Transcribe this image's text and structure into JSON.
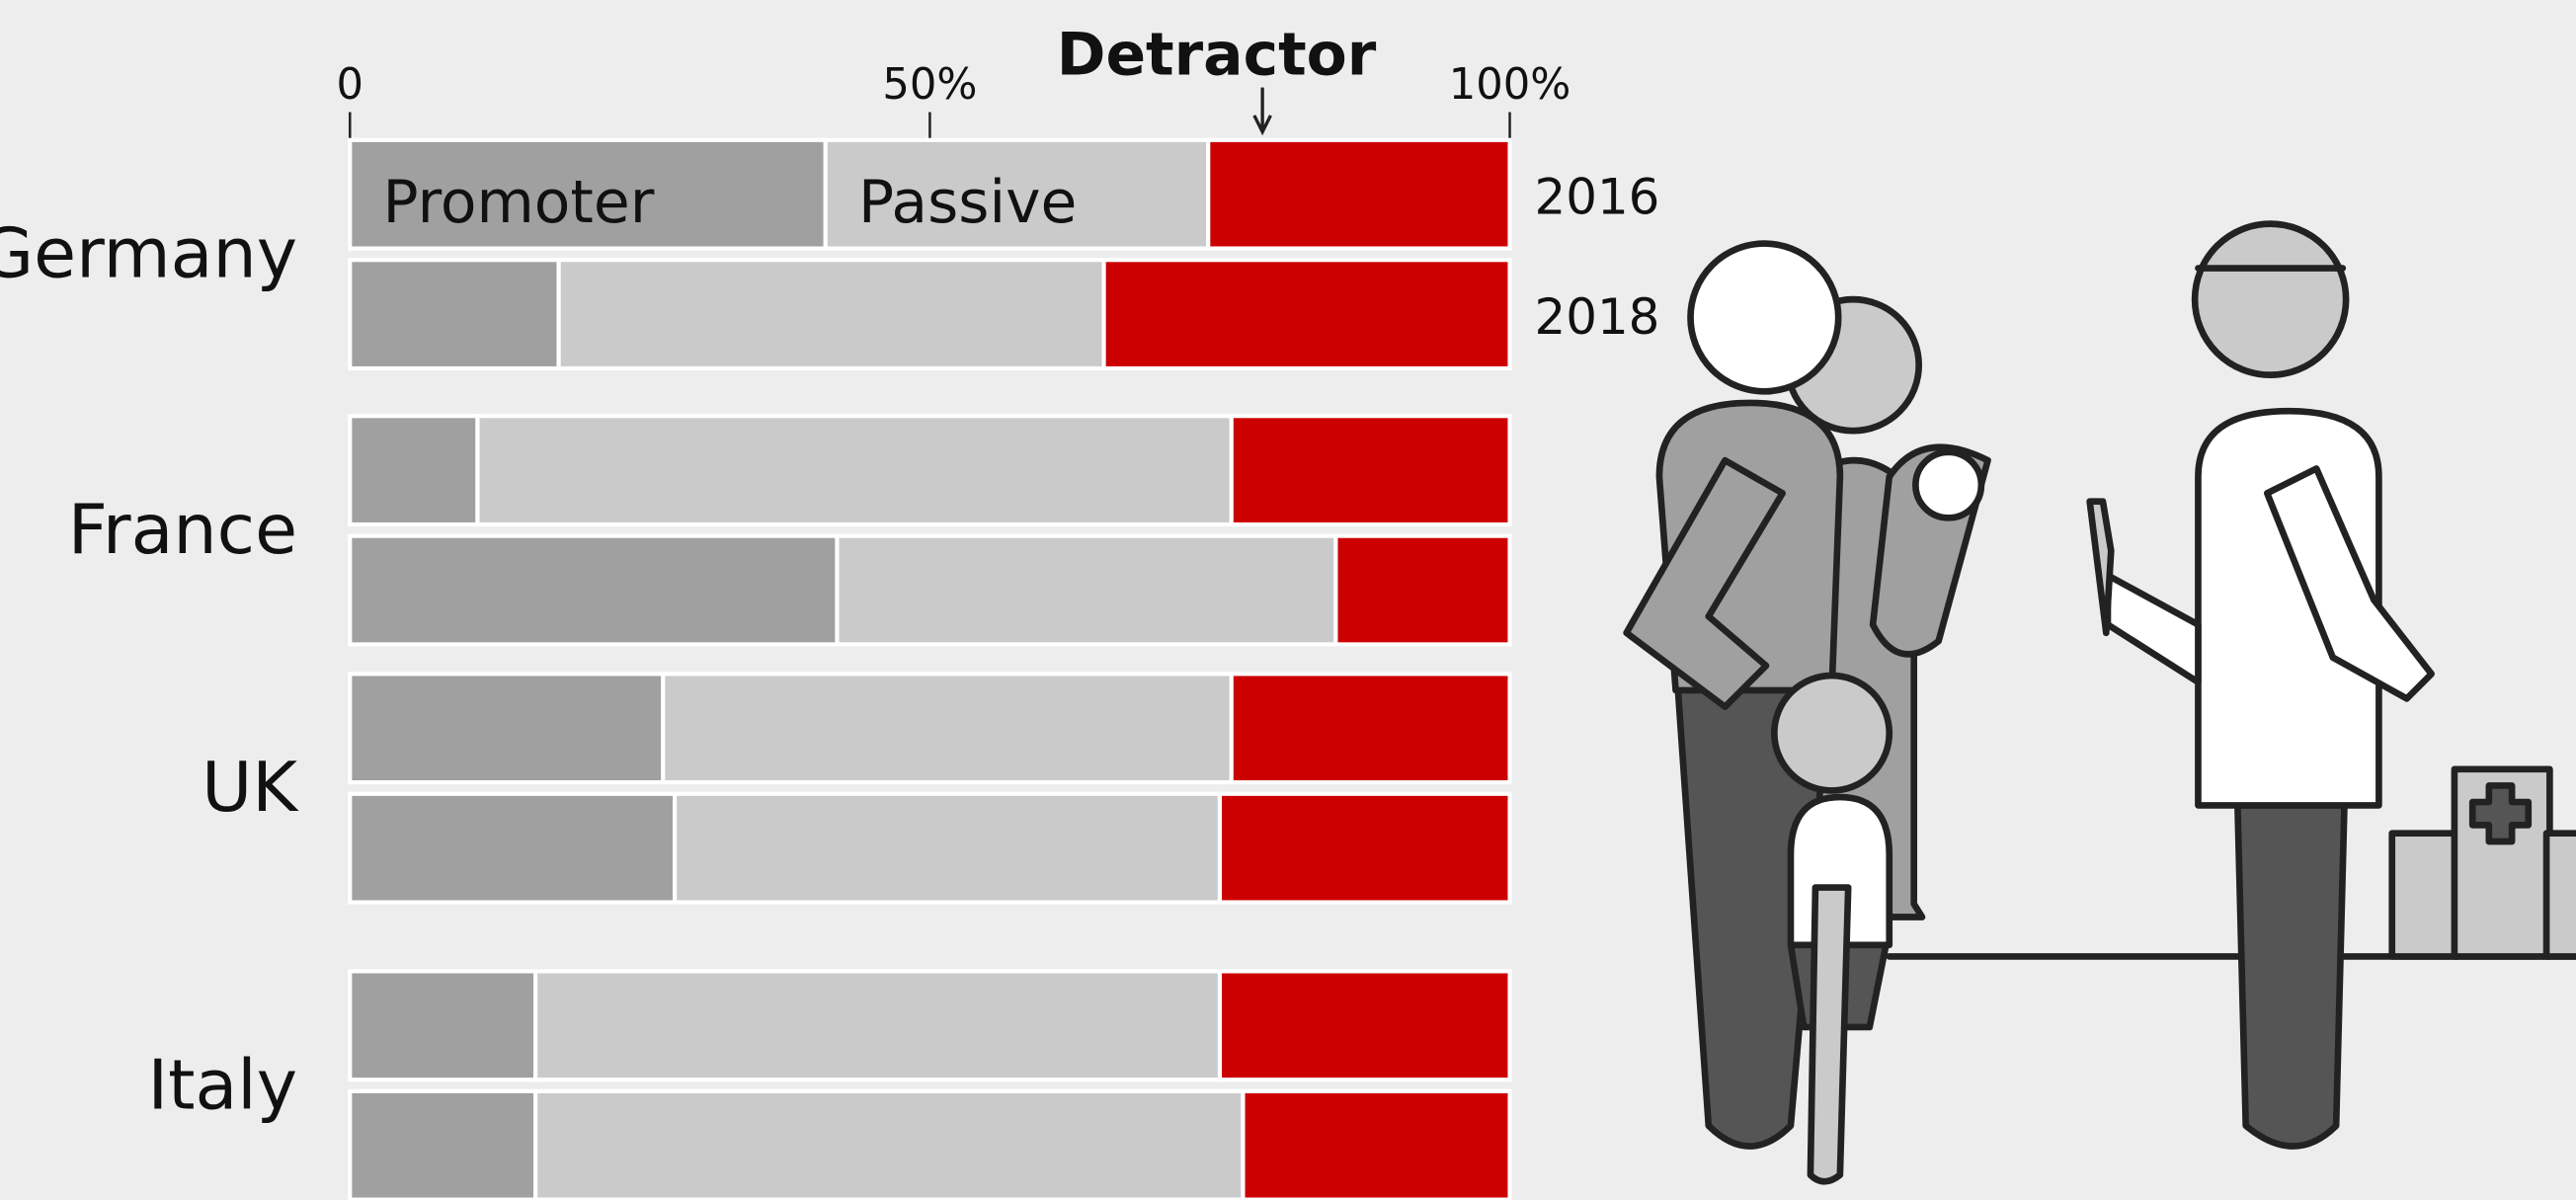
{
  "chart_data": {
    "type": "stacked-bar-100",
    "countries": [
      "Germany",
      "France",
      "UK",
      "Italy"
    ],
    "years": [
      "2016",
      "2018"
    ],
    "series": [
      {
        "name": "Promoter",
        "color": "#a0a0a0",
        "values": [
          41,
          18,
          11,
          42,
          27,
          28,
          16,
          16
        ]
      },
      {
        "name": "Passive",
        "color": "#cacaca",
        "values": [
          33,
          47,
          65,
          43,
          49,
          47,
          59,
          61
        ]
      },
      {
        "name": "Detractor",
        "color": "#cc0000",
        "values": [
          26,
          35,
          24,
          15,
          24,
          25,
          25,
          23
        ]
      }
    ],
    "xlim": [
      0,
      100
    ],
    "xticks": [
      0,
      {
        "value": 50,
        "label": "50%"
      },
      {
        "value": 100,
        "label": "100%"
      }
    ]
  }
}
